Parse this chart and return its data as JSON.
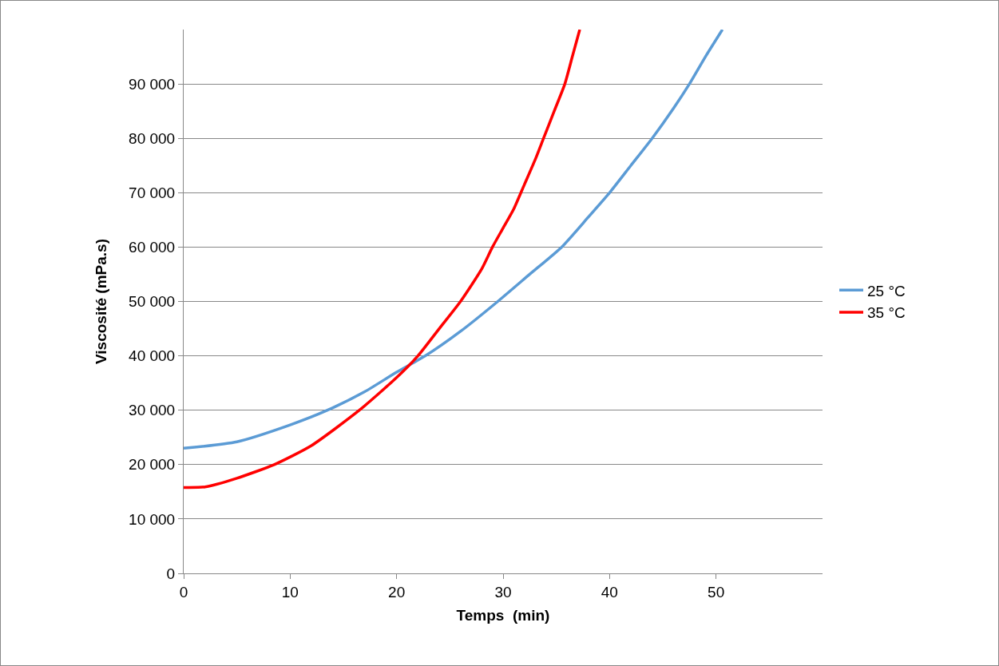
{
  "chart_data": {
    "type": "line",
    "xlabel": "Temps  (min)",
    "ylabel": "Viscosité (mPa.s)",
    "xlim": [
      0,
      60
    ],
    "xticks": [
      0,
      10,
      20,
      30,
      40,
      50
    ],
    "ylim": [
      0,
      100000
    ],
    "yticks": [
      {
        "value": 0,
        "label": "0"
      },
      {
        "value": 10000,
        "label": "10 000"
      },
      {
        "value": 20000,
        "label": "20 000"
      },
      {
        "value": 30000,
        "label": "30 000"
      },
      {
        "value": 40000,
        "label": "40 000"
      },
      {
        "value": 50000,
        "label": "50 000"
      },
      {
        "value": 60000,
        "label": "60 000"
      },
      {
        "value": 70000,
        "label": "70 000"
      },
      {
        "value": 80000,
        "label": "80 000"
      },
      {
        "value": 90000,
        "label": "90 000"
      }
    ],
    "grid": "y",
    "legend": "right",
    "marker": "none",
    "line_style": "solid",
    "series": [
      {
        "name": "25 °C",
        "color": "#5b9bd5",
        "x": [
          0,
          5,
          10,
          13.5,
          17,
          20,
          22.7,
          26,
          29.5,
          32.5,
          35.5,
          38,
          40,
          42,
          44,
          46,
          47.5,
          49,
          50.6
        ],
        "values": [
          23000,
          24200,
          27300,
          30000,
          33400,
          37000,
          40000,
          44500,
          50000,
          55000,
          60000,
          65500,
          70000,
          75000,
          80000,
          85500,
          90000,
          95000,
          100000
        ]
      },
      {
        "name": "35 °C",
        "color": "#ff0000",
        "x": [
          0,
          2,
          5,
          8.5,
          12,
          16.5,
          20,
          22,
          24,
          26,
          28,
          29,
          30,
          31,
          32,
          33,
          33.8,
          34.8,
          35.8,
          36.5,
          37.2
        ],
        "values": [
          15800,
          15900,
          17500,
          20000,
          23500,
          30000,
          36000,
          40000,
          45000,
          50000,
          56000,
          60000,
          63500,
          67000,
          71500,
          76000,
          80000,
          85000,
          90000,
          95000,
          100000
        ]
      }
    ]
  }
}
